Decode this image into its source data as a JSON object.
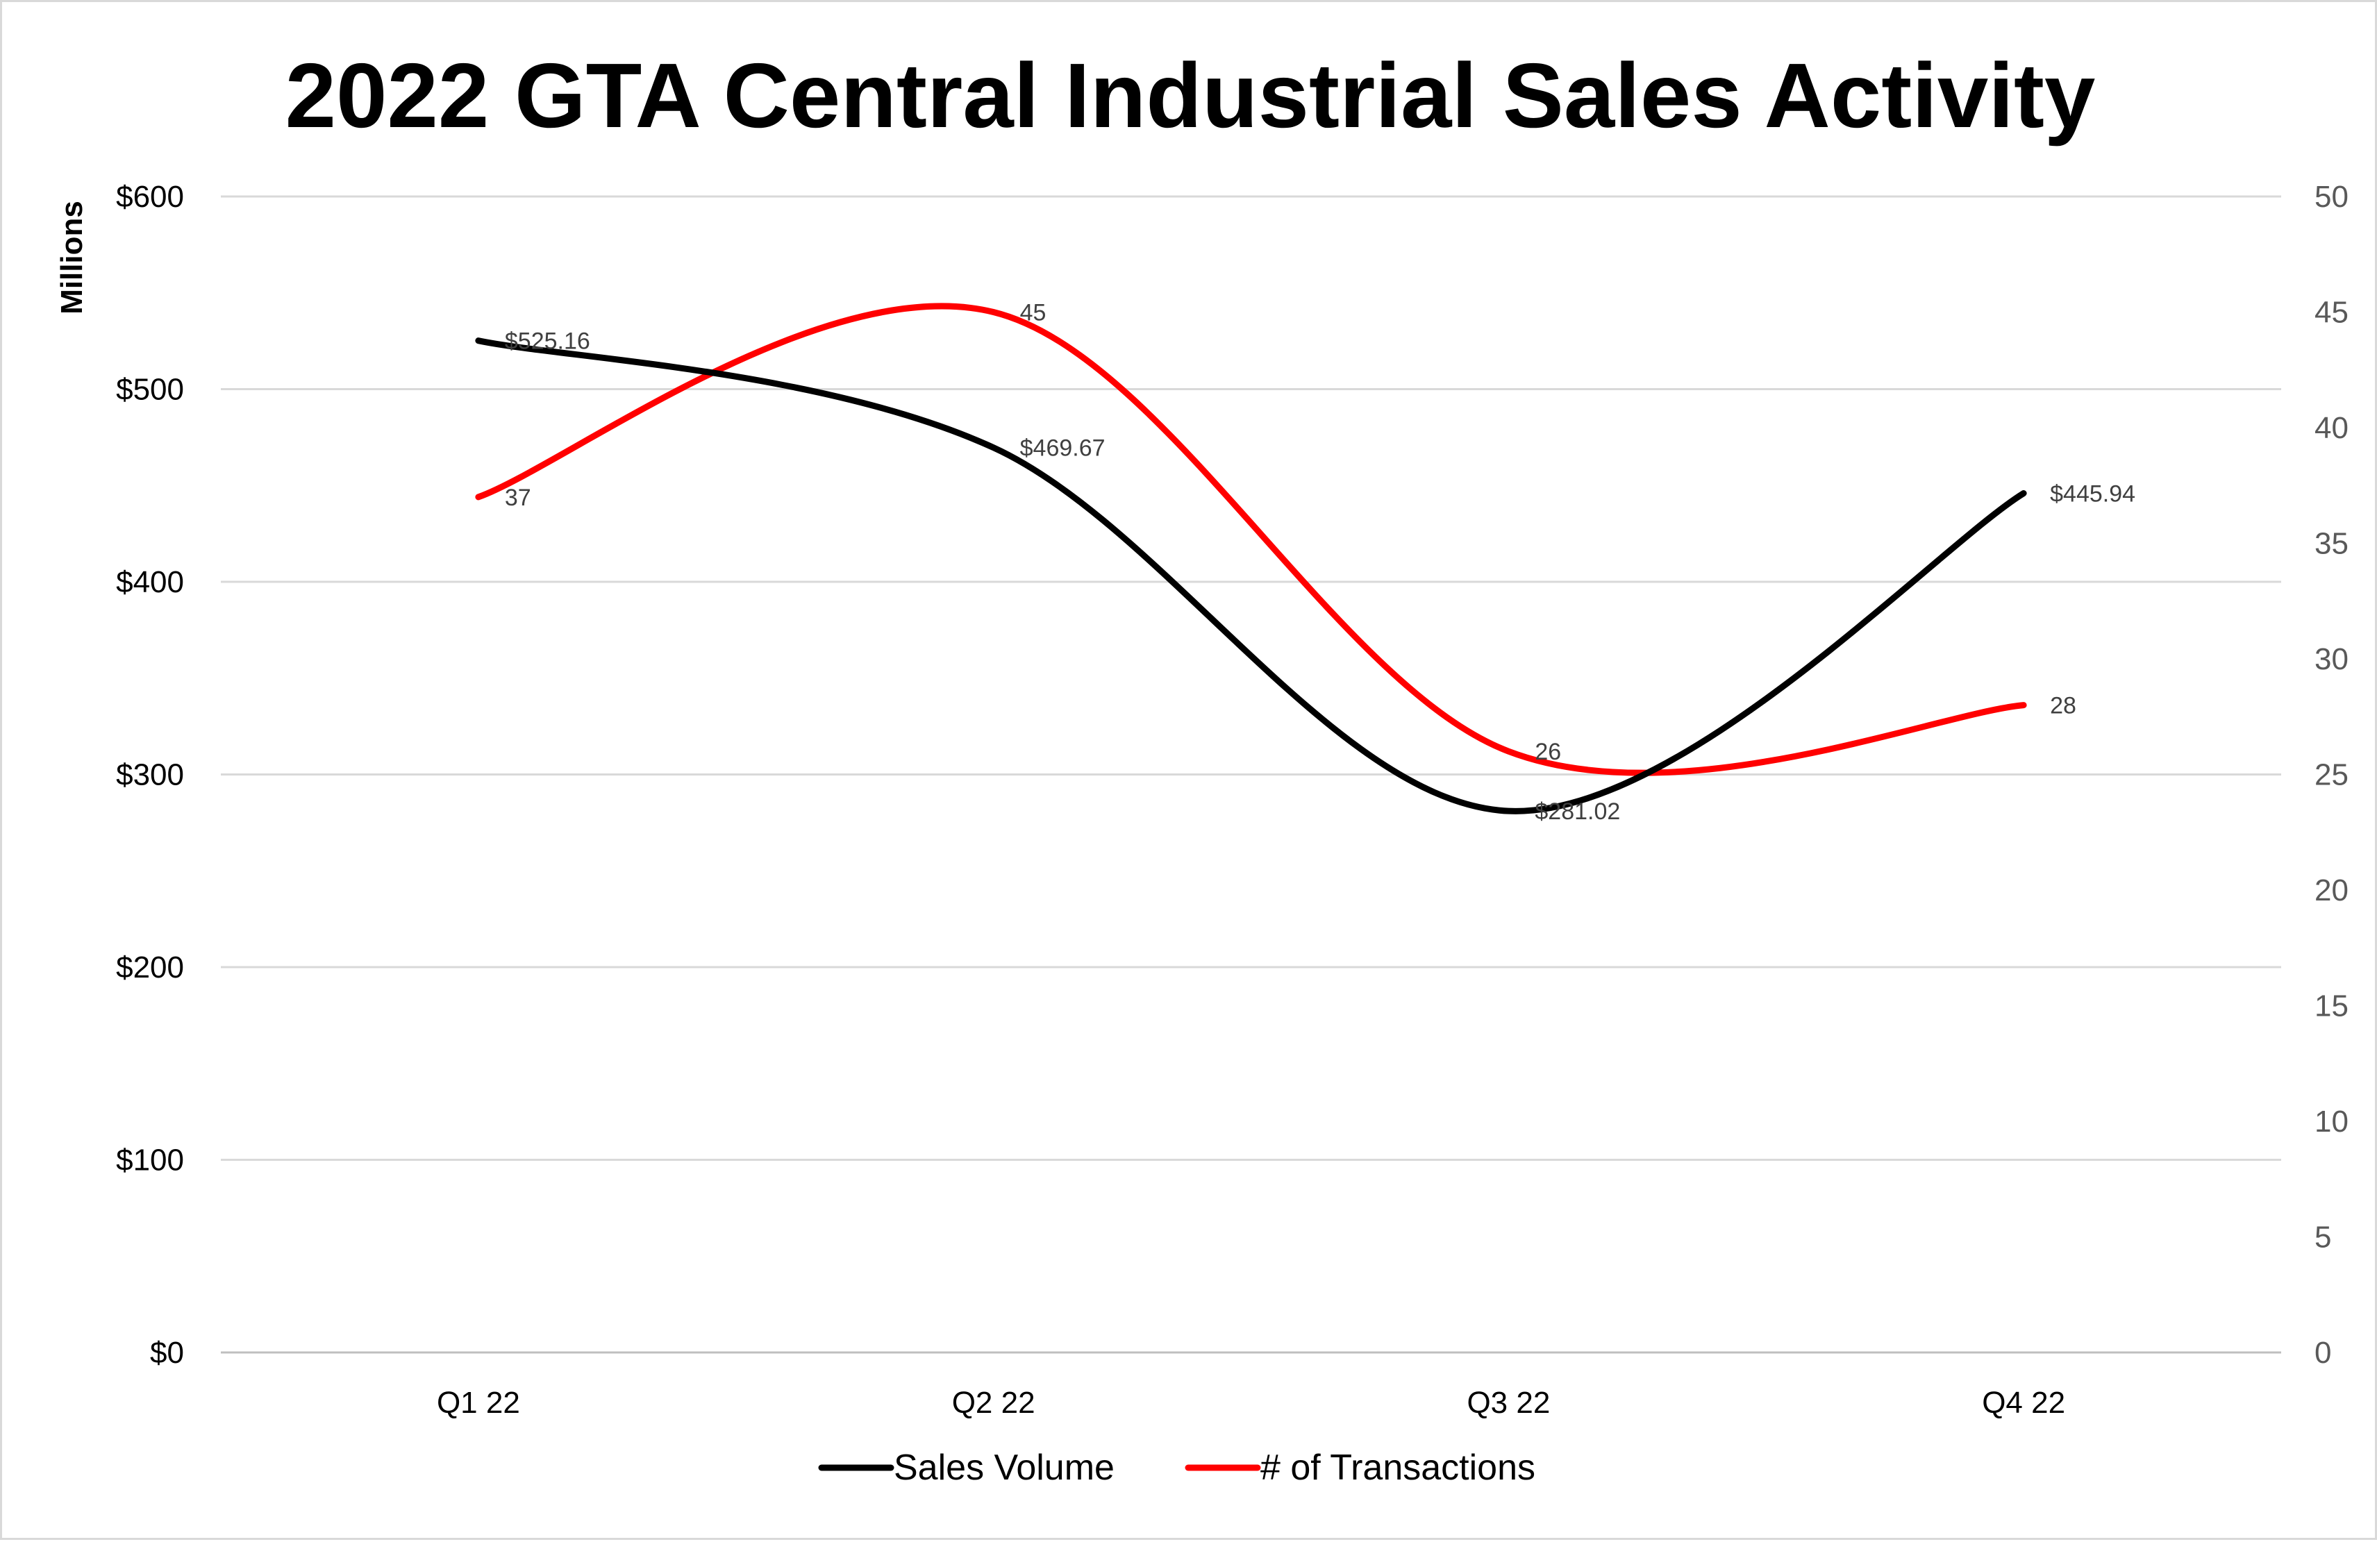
{
  "chart_data": {
    "type": "line",
    "title": "2022 GTA Central Industrial Sales Activity",
    "categories": [
      "Q1 22",
      "Q2 22",
      "Q3 22",
      "Q4 22"
    ],
    "ylabel_left": "Millions",
    "ylim_left": [
      0,
      600
    ],
    "yticks_left": [
      "$0",
      "$100",
      "$200",
      "$300",
      "$400",
      "$500",
      "$600"
    ],
    "ylim_right": [
      0,
      50
    ],
    "yticks_right": [
      "0",
      "5",
      "10",
      "15",
      "20",
      "25",
      "30",
      "35",
      "40",
      "45",
      "50"
    ],
    "grid": true,
    "smooth": true,
    "legend_position": "bottom",
    "series": [
      {
        "name": "Sales Volume",
        "axis": "left",
        "color": "#000000",
        "values": [
          525.16,
          469.67,
          281.02,
          445.94
        ],
        "labels": [
          "$525.16",
          "$469.67",
          "$281.02",
          "$445.94"
        ]
      },
      {
        "name": "# of Transactions",
        "axis": "right",
        "color": "#ff0000",
        "values": [
          37,
          45,
          26,
          28
        ],
        "labels": [
          "37",
          "45",
          "26",
          "28"
        ]
      }
    ]
  }
}
